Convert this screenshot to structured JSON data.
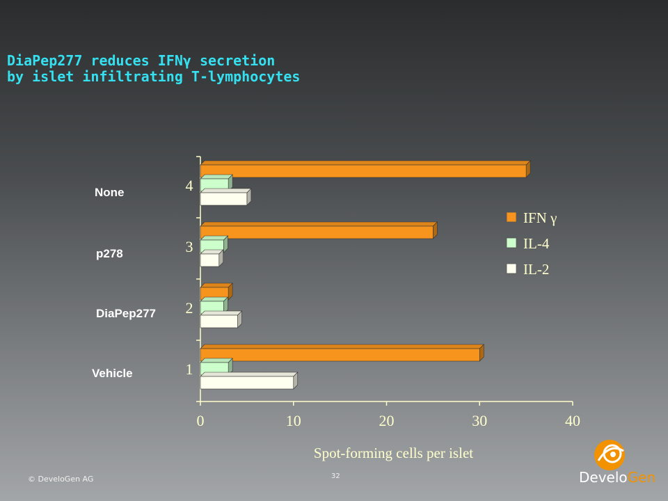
{
  "slide": {
    "title_line1": "DiaPep277 reduces IFNγ secretion",
    "title_line2": "by islet infiltrating T-lymphocytes",
    "group_labels": [
      "None",
      "p278",
      "DiaPep277",
      "Vehicle"
    ],
    "copyright": "© DeveloGen AG",
    "page_number": "32",
    "logo": {
      "part1": "Develo",
      "part2": "Gen"
    }
  },
  "chart_data": {
    "type": "bar",
    "orientation": "horizontal",
    "categories": [
      "4",
      "3",
      "2",
      "1"
    ],
    "series": [
      {
        "name": "IFN γ",
        "color": "#f7941d",
        "values": [
          35,
          25,
          3,
          30
        ]
      },
      {
        "name": "IL-4",
        "color": "#ccffcc",
        "values": [
          3,
          2.5,
          2.5,
          3
        ]
      },
      {
        "name": "IL-2",
        "color": "#fffff0",
        "values": [
          5,
          2,
          4,
          10
        ]
      }
    ],
    "xlabel": "Spot-forming cells per islet",
    "xlim": [
      0,
      40
    ],
    "xticks": [
      "0",
      "10",
      "20",
      "30",
      "40"
    ],
    "legend_position": "right",
    "grid": false
  }
}
